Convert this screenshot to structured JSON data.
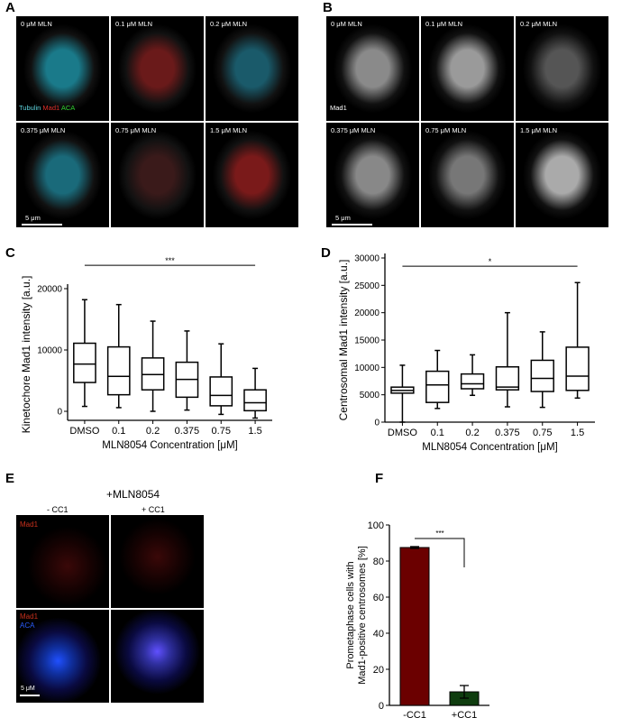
{
  "panels": {
    "A": "A",
    "B": "B",
    "C": "C",
    "D": "D",
    "E": "E",
    "F": "F"
  },
  "panel_a": {
    "conditions": [
      "0 μM MLN",
      "0.1 μM MLN",
      "0.2 μM MLN",
      "0.375 μM MLN",
      "0.75 μM MLN",
      "1.5 μM MLN"
    ],
    "legend": {
      "tubulin": "Tubulin",
      "mad1": "Mad1",
      "aca": "ACA"
    },
    "scale_bar": "5 μm",
    "colors": {
      "tubulin": "#5fd6e0",
      "mad1": "#e0302a",
      "aca": "#2fd12f"
    }
  },
  "panel_b": {
    "conditions": [
      "0 μM MLN",
      "0.1 μM MLN",
      "0.2 μM MLN",
      "0.375 μM MLN",
      "0.75 μM MLN",
      "1.5 μM MLN"
    ],
    "label": "Mad1",
    "scale_bar": "5 μm"
  },
  "panel_e": {
    "title": "+MLN8054",
    "columns": [
      "- CC1",
      "+ CC1"
    ],
    "mad1": "Mad1",
    "aca": "ACA",
    "scale_bar": "5 μM"
  },
  "chart_data": [
    {
      "type": "box",
      "panel": "C",
      "categories": [
        "DMSO",
        "0.1",
        "0.2",
        "0.375",
        "0.75",
        "1.5"
      ],
      "ylabel": "Kinetochore Mad1 intensity [a.u.]",
      "xlabel": "MLN8054 Concentration [μM]",
      "ylim": [
        -2000,
        25000
      ],
      "yticks": [
        0,
        10000,
        20000
      ],
      "boxes": [
        [
          800,
          4700,
          7700,
          11100,
          18200
        ],
        [
          600,
          2700,
          5700,
          10500,
          17400
        ],
        [
          0,
          3500,
          6000,
          8700,
          14700
        ],
        [
          200,
          2300,
          5200,
          8000,
          13100
        ],
        [
          -500,
          900,
          2600,
          5600,
          11000
        ],
        [
          -1100,
          100,
          1400,
          3500,
          7000
        ]
      ],
      "significance": {
        "label": "***",
        "from": "DMSO",
        "to": "1.5",
        "y": 23800
      }
    },
    {
      "type": "box",
      "panel": "D",
      "categories": [
        "DMSO",
        "0.1",
        "0.2",
        "0.375",
        "0.75",
        "1.5"
      ],
      "ylabel": "Centrosomal Mad1 intensity [a.u.]",
      "xlabel": "MLN8054 Concentration [μM]",
      "ylim": [
        0,
        30000
      ],
      "yticks": [
        0,
        5000,
        10000,
        15000,
        20000,
        25000,
        30000
      ],
      "boxes": [
        [
          0,
          5300,
          5800,
          6400,
          10400
        ],
        [
          2500,
          3600,
          6800,
          9300,
          13100
        ],
        [
          4900,
          6100,
          7000,
          8800,
          12300
        ],
        [
          2800,
          5900,
          6400,
          10100,
          20000
        ],
        [
          2700,
          5600,
          8000,
          11300,
          16500
        ],
        [
          4400,
          5800,
          8400,
          13700,
          25500
        ]
      ],
      "significance": {
        "label": "*",
        "from": "DMSO",
        "to": "1.5",
        "y": 28500
      }
    },
    {
      "type": "bar",
      "panel": "F",
      "categories": [
        "-CC1",
        "+CC1"
      ],
      "values": [
        87.5,
        7.5
      ],
      "errors": [
        0.5,
        3.5
      ],
      "colors": [
        "#6b0000",
        "#0f3d0f"
      ],
      "ylabel": [
        "Prometaphase cells with",
        "Mad1-positive centrosomes [%]"
      ],
      "ylim": [
        0,
        100
      ],
      "yticks": [
        0,
        20,
        40,
        60,
        80,
        100
      ],
      "significance": {
        "label": "***"
      }
    }
  ]
}
